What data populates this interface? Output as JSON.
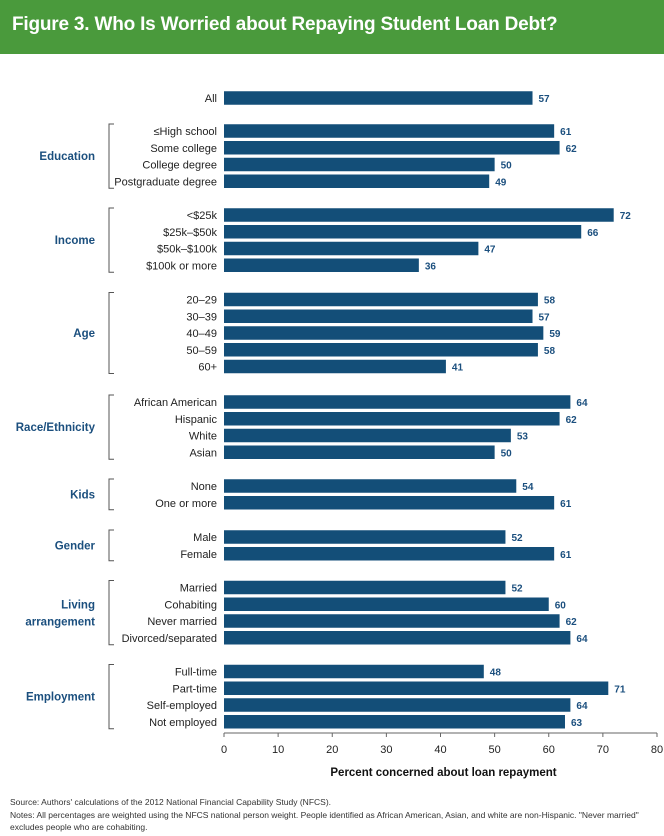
{
  "figure_title": "Figure 3. Who Is Worried about Repaying Student Loan Debt?",
  "source": "Source: Authors' calculations of the 2012 National Financial Capability Study (NFCS).",
  "notes": "Notes: All percentages are weighted using the NFCS national person weight. People identified as African American, Asian, and white are non-Hispanic. \"Never married\" excludes people who are cohabiting.",
  "colors": {
    "bar": "#134e78",
    "banner": "#4a9a3c",
    "group_label": "#1b4f7e"
  },
  "chart_data": {
    "type": "bar",
    "orientation": "horizontal",
    "title": "Figure 3. Who Is Worried about Repaying Student Loan Debt?",
    "xlabel": "Percent concerned about loan repayment",
    "ylabel": "",
    "xlim": [
      0,
      80
    ],
    "xticks": [
      0,
      10,
      20,
      30,
      40,
      50,
      60,
      70,
      80
    ],
    "grid": false,
    "legend": "none",
    "groups": [
      {
        "name": "",
        "categories": [
          "All"
        ],
        "values": [
          57
        ]
      },
      {
        "name": "Education",
        "categories": [
          "≤High school",
          "Some college",
          "College degree",
          "Postgraduate degree"
        ],
        "values": [
          61,
          62,
          50,
          49
        ]
      },
      {
        "name": "Income",
        "categories": [
          "<$25k",
          "$25k–$50k",
          "$50k–$100k",
          "$100k or more"
        ],
        "values": [
          72,
          66,
          47,
          36
        ]
      },
      {
        "name": "Age",
        "categories": [
          "20–29",
          "30–39",
          "40–49",
          "50–59",
          "60+"
        ],
        "values": [
          58,
          57,
          59,
          58,
          41
        ]
      },
      {
        "name": "Race/Ethnicity",
        "categories": [
          "African American",
          "Hispanic",
          "White",
          "Asian"
        ],
        "values": [
          64,
          62,
          53,
          50
        ]
      },
      {
        "name": "Kids",
        "categories": [
          "None",
          "One or more"
        ],
        "values": [
          54,
          61
        ]
      },
      {
        "name": "Gender",
        "categories": [
          "Male",
          "Female"
        ],
        "values": [
          52,
          61
        ]
      },
      {
        "name": "Living arrangement",
        "categories": [
          "Married",
          "Cohabiting",
          "Never married",
          "Divorced/separated"
        ],
        "values": [
          52,
          60,
          62,
          64
        ]
      },
      {
        "name": "Employment",
        "categories": [
          "Full-time",
          "Part-time",
          "Self-employed",
          "Not employed"
        ],
        "values": [
          48,
          71,
          64,
          63
        ]
      }
    ]
  }
}
